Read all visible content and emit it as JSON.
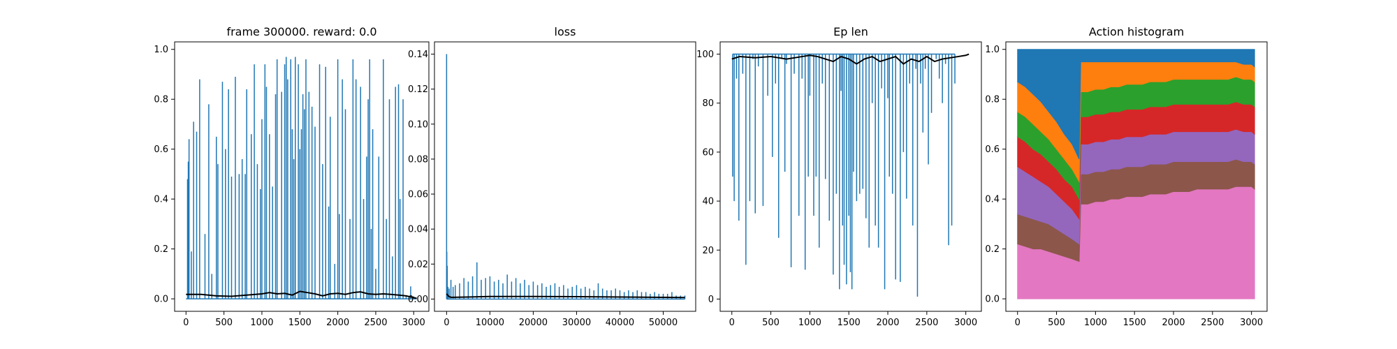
{
  "figure": {
    "background": "#ffffff"
  },
  "chart_data": [
    {
      "type": "line",
      "title": "frame 300000. reward: 0.0",
      "xlim": [
        -150,
        3200
      ],
      "ylim": [
        -0.05,
        1.03
      ],
      "xticks": [
        0,
        500,
        1000,
        1500,
        2000,
        2500,
        3000
      ],
      "xtick_labels": [
        "0",
        "500",
        "1000",
        "1500",
        "2000",
        "2500",
        "3000"
      ],
      "yticks": [
        0.0,
        0.2,
        0.4,
        0.6,
        0.8,
        1.0
      ],
      "ytick_labels": [
        "0.0",
        "0.2",
        "0.4",
        "0.6",
        "0.8",
        "1.0"
      ],
      "series": [
        {
          "color": "#1f77b4",
          "style": "spikes",
          "baseline": 0,
          "x": [
            0,
            20,
            30,
            40,
            70,
            100,
            140,
            180,
            250,
            300,
            340,
            400,
            420,
            480,
            520,
            560,
            600,
            650,
            700,
            740,
            780,
            800,
            860,
            900,
            940,
            980,
            1000,
            1040,
            1060,
            1100,
            1140,
            1180,
            1200,
            1260,
            1300,
            1320,
            1340,
            1380,
            1400,
            1420,
            1440,
            1480,
            1500,
            1520,
            1540,
            1560,
            1580,
            1620,
            1660,
            1700,
            1760,
            1800,
            1840,
            1880,
            1900,
            1960,
            2000,
            2020,
            2060,
            2100,
            2160,
            2200,
            2240,
            2300,
            2340,
            2380,
            2400,
            2420,
            2440,
            2460,
            2500,
            2540,
            2600,
            2640,
            2680,
            2720,
            2760,
            2800,
            2820,
            2860,
            2900,
            2960,
            3000,
            3040
          ],
          "y": [
            0,
            0.48,
            0.55,
            0.64,
            0.19,
            0.71,
            0.67,
            0.88,
            0.26,
            0.78,
            0.1,
            0.65,
            0.54,
            0.87,
            0.6,
            0.84,
            0.49,
            0.89,
            0.5,
            0.56,
            0.5,
            0.84,
            0.66,
            0.94,
            0.54,
            0.44,
            0.72,
            0.94,
            0.85,
            0.66,
            0.45,
            0.82,
            0.96,
            0.83,
            0.94,
            0.97,
            0.88,
            0.96,
            0.68,
            0.56,
            0.97,
            0.94,
            0.6,
            0.68,
            0.82,
            0.76,
            0.96,
            0.83,
            0.77,
            0.69,
            0.94,
            0.54,
            0.93,
            0.37,
            0.73,
            0.14,
            0.96,
            0.34,
            0.88,
            0.76,
            0.32,
            0.96,
            0.88,
            0.85,
            0.4,
            0.57,
            0.8,
            0.96,
            0.28,
            0.68,
            0.12,
            0.57,
            0.96,
            0.32,
            0.8,
            0.17,
            0.85,
            0.86,
            0.4,
            0.8,
            0.01,
            0.05,
            0.01,
            0.0
          ]
        },
        {
          "color": "#000000",
          "style": "line",
          "x": [
            0,
            200,
            400,
            600,
            800,
            1000,
            1100,
            1200,
            1300,
            1400,
            1500,
            1600,
            1700,
            1800,
            1900,
            2000,
            2100,
            2200,
            2300,
            2400,
            2500,
            2600,
            2700,
            2800,
            2900,
            3000,
            3040
          ],
          "y": [
            0.018,
            0.018,
            0.012,
            0.01,
            0.015,
            0.02,
            0.025,
            0.02,
            0.022,
            0.015,
            0.03,
            0.025,
            0.02,
            0.012,
            0.02,
            0.022,
            0.018,
            0.025,
            0.028,
            0.02,
            0.018,
            0.02,
            0.018,
            0.015,
            0.012,
            0.005,
            0.002
          ]
        }
      ]
    },
    {
      "type": "line",
      "title": "loss",
      "xlim": [
        -2800,
        57500
      ],
      "ylim": [
        -0.007,
        0.147
      ],
      "xticks": [
        0,
        10000,
        20000,
        30000,
        40000,
        50000
      ],
      "xtick_labels": [
        "0",
        "10000",
        "20000",
        "30000",
        "40000",
        "50000"
      ],
      "yticks": [
        0.0,
        0.02,
        0.04,
        0.06,
        0.08,
        0.1,
        0.12,
        0.14
      ],
      "ytick_labels": [
        "0.00",
        "0.02",
        "0.04",
        "0.06",
        "0.08",
        "0.10",
        "0.12",
        "0.14"
      ],
      "series": [
        {
          "color": "#1f77b4",
          "style": "spikes",
          "baseline": 0,
          "x": [
            0,
            50,
            150,
            300,
            600,
            1000,
            1500,
            2000,
            3000,
            4000,
            5000,
            6000,
            7000,
            8000,
            9000,
            10000,
            11000,
            12000,
            13000,
            14000,
            15000,
            16000,
            17000,
            18000,
            19000,
            20000,
            21000,
            22000,
            23000,
            24000,
            25000,
            26000,
            27000,
            28000,
            29000,
            30000,
            31000,
            32000,
            33000,
            34000,
            35000,
            36000,
            37000,
            38000,
            39000,
            40000,
            41000,
            42000,
            43000,
            44000,
            45000,
            46000,
            47000,
            48000,
            49000,
            50000,
            51000,
            52000,
            53000,
            54000,
            55000
          ],
          "y": [
            0.14,
            0.027,
            0.019,
            0.007,
            0.006,
            0.011,
            0.007,
            0.008,
            0.009,
            0.012,
            0.01,
            0.013,
            0.021,
            0.011,
            0.012,
            0.013,
            0.01,
            0.011,
            0.009,
            0.014,
            0.01,
            0.012,
            0.009,
            0.011,
            0.008,
            0.01,
            0.008,
            0.009,
            0.007,
            0.008,
            0.009,
            0.007,
            0.008,
            0.006,
            0.007,
            0.008,
            0.006,
            0.007,
            0.006,
            0.005,
            0.009,
            0.006,
            0.005,
            0.005,
            0.006,
            0.005,
            0.004,
            0.005,
            0.004,
            0.005,
            0.004,
            0.004,
            0.003,
            0.004,
            0.003,
            0.003,
            0.003,
            0.004,
            0.002,
            0.002,
            0.002
          ]
        },
        {
          "color": "#000000",
          "style": "line",
          "x": [
            0,
            500,
            1000,
            5000,
            10000,
            20000,
            30000,
            40000,
            50000,
            55000
          ],
          "y": [
            0.003,
            0.0015,
            0.001,
            0.0012,
            0.0015,
            0.0015,
            0.0014,
            0.0012,
            0.001,
            0.0009
          ]
        }
      ]
    },
    {
      "type": "line",
      "title": "Ep len",
      "xlim": [
        -150,
        3200
      ],
      "ylim": [
        -5,
        105
      ],
      "xticks": [
        0,
        500,
        1000,
        1500,
        2000,
        2500,
        3000
      ],
      "xtick_labels": [
        "0",
        "500",
        "1000",
        "1500",
        "2000",
        "2500",
        "3000"
      ],
      "yticks": [
        0,
        20,
        40,
        60,
        80,
        100
      ],
      "ytick_labels": [
        "0",
        "20",
        "40",
        "60",
        "80",
        "100"
      ],
      "series": [
        {
          "color": "#1f77b4",
          "style": "spikes",
          "baseline": 100,
          "x": [
            10,
            30,
            60,
            90,
            140,
            180,
            230,
            270,
            300,
            340,
            400,
            460,
            520,
            560,
            600,
            640,
            680,
            700,
            760,
            800,
            860,
            900,
            940,
            980,
            1000,
            1050,
            1080,
            1120,
            1160,
            1200,
            1250,
            1300,
            1340,
            1380,
            1400,
            1420,
            1440,
            1470,
            1500,
            1520,
            1540,
            1560,
            1600,
            1640,
            1680,
            1720,
            1760,
            1800,
            1840,
            1880,
            1920,
            1960,
            2000,
            2020,
            2060,
            2100,
            2160,
            2200,
            2240,
            2280,
            2320,
            2360,
            2380,
            2420,
            2450,
            2480,
            2520,
            2560,
            2620,
            2660,
            2700,
            2740,
            2780,
            2820,
            2860
          ],
          "y": [
            50,
            40,
            90,
            32,
            92,
            14,
            40,
            98,
            35,
            95,
            38,
            83,
            58,
            88,
            25,
            98,
            52,
            96,
            13,
            92,
            34,
            90,
            12,
            50,
            83,
            34,
            50,
            21,
            88,
            49,
            32,
            10,
            43,
            4,
            85,
            30,
            14,
            6,
            34,
            11,
            4,
            52,
            40,
            43,
            45,
            33,
            21,
            80,
            30,
            21,
            86,
            4,
            82,
            50,
            43,
            8,
            7,
            60,
            41,
            88,
            30,
            94,
            1,
            88,
            68,
            94,
            55,
            76,
            98,
            90,
            80,
            96,
            22,
            30,
            88
          ]
        },
        {
          "color": "#000000",
          "style": "line",
          "x": [
            0,
            100,
            300,
            500,
            700,
            900,
            1000,
            1100,
            1200,
            1300,
            1400,
            1500,
            1600,
            1700,
            1800,
            1900,
            2000,
            2100,
            2200,
            2300,
            2400,
            2500,
            2600,
            2700,
            2800,
            2900,
            3000,
            3040
          ],
          "y": [
            98,
            99,
            98.5,
            99,
            98,
            99,
            99.5,
            99,
            98,
            97,
            99,
            98,
            96,
            98,
            99,
            97,
            98,
            99,
            96,
            98,
            97,
            99,
            97,
            98,
            98.5,
            99,
            99.5,
            100
          ]
        }
      ]
    },
    {
      "type": "area",
      "title": "Action histogram",
      "xlim": [
        -150,
        3200
      ],
      "ylim": [
        -0.05,
        1.03
      ],
      "xticks": [
        0,
        500,
        1000,
        1500,
        2000,
        2500,
        3000
      ],
      "xtick_labels": [
        "0",
        "500",
        "1000",
        "1500",
        "2000",
        "2500",
        "3000"
      ],
      "yticks": [
        0.0,
        0.2,
        0.4,
        0.6,
        0.8,
        1.0
      ],
      "ytick_labels": [
        "0.0",
        "0.2",
        "0.4",
        "0.6",
        "0.8",
        "1.0"
      ],
      "stacked": true,
      "x": [
        0,
        100,
        200,
        300,
        400,
        500,
        600,
        700,
        790,
        810,
        900,
        1000,
        1100,
        1200,
        1300,
        1400,
        1500,
        1600,
        1700,
        1800,
        1900,
        2000,
        2100,
        2200,
        2300,
        2400,
        2500,
        2600,
        2700,
        2800,
        2900,
        3000,
        3040
      ],
      "series": [
        {
          "color": "#e377c2",
          "values": [
            0.22,
            0.21,
            0.2,
            0.2,
            0.19,
            0.18,
            0.17,
            0.16,
            0.15,
            0.38,
            0.38,
            0.39,
            0.39,
            0.4,
            0.4,
            0.41,
            0.41,
            0.41,
            0.42,
            0.42,
            0.42,
            0.43,
            0.43,
            0.43,
            0.44,
            0.44,
            0.44,
            0.44,
            0.44,
            0.45,
            0.45,
            0.45,
            0.44
          ]
        },
        {
          "color": "#8c564b",
          "values": [
            0.12,
            0.12,
            0.12,
            0.11,
            0.11,
            0.1,
            0.09,
            0.08,
            0.07,
            0.12,
            0.12,
            0.12,
            0.12,
            0.12,
            0.12,
            0.12,
            0.12,
            0.12,
            0.12,
            0.12,
            0.12,
            0.12,
            0.12,
            0.12,
            0.11,
            0.11,
            0.11,
            0.11,
            0.11,
            0.11,
            0.1,
            0.1,
            0.1
          ]
        },
        {
          "color": "#9467bd",
          "values": [
            0.19,
            0.18,
            0.17,
            0.16,
            0.15,
            0.14,
            0.13,
            0.12,
            0.1,
            0.12,
            0.12,
            0.12,
            0.12,
            0.12,
            0.12,
            0.12,
            0.12,
            0.12,
            0.12,
            0.12,
            0.12,
            0.12,
            0.12,
            0.12,
            0.12,
            0.12,
            0.12,
            0.12,
            0.12,
            0.12,
            0.12,
            0.12,
            0.12
          ]
        },
        {
          "color": "#d62728",
          "values": [
            0.12,
            0.12,
            0.11,
            0.11,
            0.1,
            0.1,
            0.09,
            0.09,
            0.08,
            0.11,
            0.11,
            0.11,
            0.11,
            0.11,
            0.11,
            0.11,
            0.11,
            0.11,
            0.11,
            0.11,
            0.11,
            0.11,
            0.11,
            0.11,
            0.11,
            0.11,
            0.11,
            0.11,
            0.11,
            0.11,
            0.11,
            0.11,
            0.11
          ]
        },
        {
          "color": "#2ca02c",
          "values": [
            0.1,
            0.1,
            0.1,
            0.09,
            0.09,
            0.08,
            0.08,
            0.07,
            0.07,
            0.1,
            0.1,
            0.1,
            0.1,
            0.1,
            0.1,
            0.1,
            0.1,
            0.1,
            0.1,
            0.1,
            0.1,
            0.1,
            0.1,
            0.1,
            0.1,
            0.1,
            0.1,
            0.1,
            0.1,
            0.1,
            0.1,
            0.1,
            0.1
          ]
        },
        {
          "color": "#ff7f0e",
          "values": [
            0.12,
            0.12,
            0.12,
            0.12,
            0.11,
            0.11,
            0.1,
            0.1,
            0.09,
            0.12,
            0.12,
            0.11,
            0.11,
            0.1,
            0.1,
            0.09,
            0.09,
            0.09,
            0.08,
            0.08,
            0.08,
            0.07,
            0.07,
            0.07,
            0.07,
            0.07,
            0.07,
            0.07,
            0.07,
            0.06,
            0.06,
            0.06,
            0.06
          ]
        },
        {
          "color": "#1f77b4",
          "values": [
            0.13,
            0.15,
            0.18,
            0.21,
            0.25,
            0.29,
            0.34,
            0.38,
            0.44,
            0.05,
            0.05,
            0.05,
            0.05,
            0.05,
            0.05,
            0.05,
            0.05,
            0.05,
            0.05,
            0.05,
            0.05,
            0.05,
            0.05,
            0.05,
            0.05,
            0.05,
            0.05,
            0.05,
            0.05,
            0.05,
            0.06,
            0.06,
            0.07
          ]
        }
      ]
    }
  ]
}
